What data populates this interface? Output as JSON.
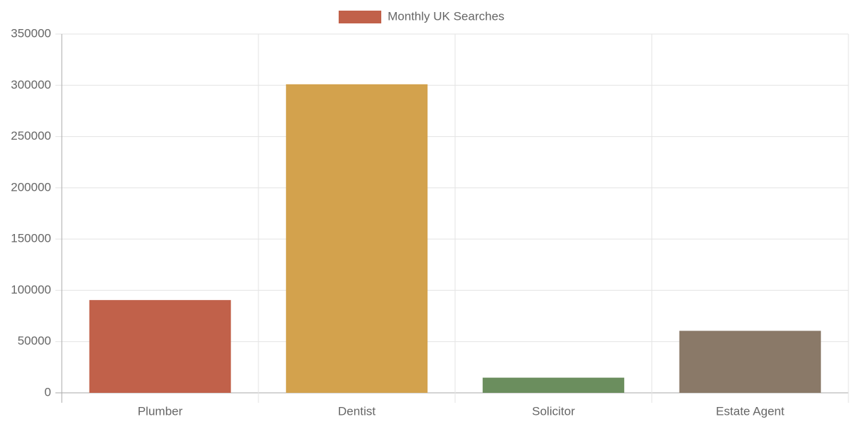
{
  "chart_data": {
    "type": "bar",
    "categories": [
      "Plumber",
      "Dentist",
      "Solicitor",
      "Estate Agent"
    ],
    "series": [
      {
        "name": "Monthly UK Searches",
        "colors": [
          "#c1614a",
          "#d3a24d",
          "#6b8e5e",
          "#8a7968"
        ],
        "values": [
          90500,
          301000,
          14800,
          60500
        ]
      }
    ],
    "ylim": [
      0,
      350000
    ],
    "yticks": [
      0,
      50000,
      100000,
      150000,
      200000,
      250000,
      300000,
      350000
    ],
    "grid": true
  }
}
